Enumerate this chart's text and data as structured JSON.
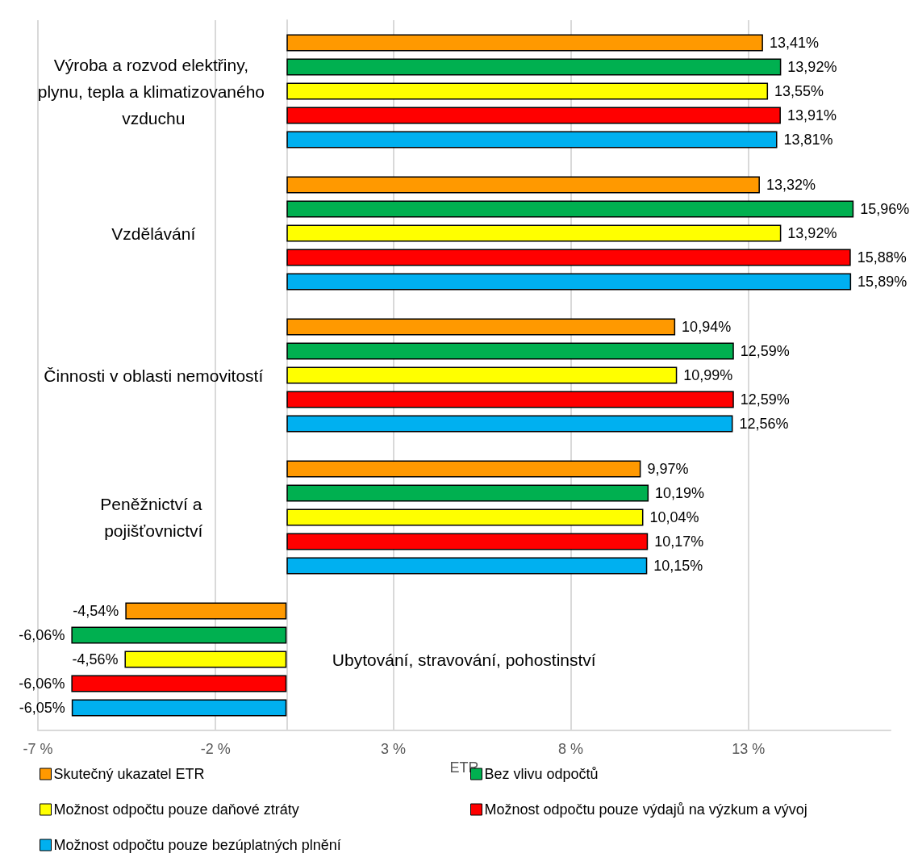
{
  "chart_data": {
    "type": "bar",
    "orientation": "horizontal",
    "xlabel": "ETR",
    "categories": [
      "Výroba a rozvod elektřiny, plynu, tepla a klimatizovaného vzduchu",
      "Vzdělávání",
      "Činnosti v oblasti nemovitostí",
      "Peněžnictví a pojišťovnictví",
      "Ubytování, stravování, pohostinství"
    ],
    "series": [
      {
        "name": "Skutečný ukazatel ETR",
        "color": "#ff9900",
        "values": [
          13.41,
          13.32,
          10.94,
          9.97,
          -4.54
        ],
        "value_labels": [
          "13,41%",
          "13,32%",
          "10,94%",
          "9,97%",
          "-4,54%"
        ]
      },
      {
        "name": "Bez vlivu odpočtů",
        "color": "#00b050",
        "values": [
          13.92,
          15.96,
          12.59,
          10.19,
          -6.06
        ],
        "value_labels": [
          "13,92%",
          "15,96%",
          "12,59%",
          "10,19%",
          "-6,06%"
        ]
      },
      {
        "name": "Možnost odpočtu pouze daňové ztráty",
        "color": "#ffff00",
        "values": [
          13.55,
          13.92,
          10.99,
          10.04,
          -4.56
        ],
        "value_labels": [
          "13,55%",
          "13,92%",
          "10,99%",
          "10,04%",
          "-4,56%"
        ]
      },
      {
        "name": "Možnost odpočtu pouze výdajů na výzkum a vývoj",
        "color": "#ff0000",
        "values": [
          13.91,
          15.88,
          12.59,
          10.17,
          -6.06
        ],
        "value_labels": [
          "13,91%",
          "15,88%",
          "12,59%",
          "10,17%",
          "-6,06%"
        ]
      },
      {
        "name": "Možnost odpočtu pouze bezúplatných plnění",
        "color": "#00b0f0",
        "values": [
          13.81,
          15.89,
          12.56,
          10.15,
          -6.05
        ],
        "value_labels": [
          "13,81%",
          "15,89%",
          "12,56%",
          "10,15%",
          "-6,05%"
        ]
      }
    ],
    "xlim": [
      -7,
      17
    ],
    "xticks": [
      {
        "value": -7,
        "label": "-7 %"
      },
      {
        "value": -2,
        "label": "-2 %"
      },
      {
        "value": 3,
        "label": "3 %"
      },
      {
        "value": 8,
        "label": "8 %"
      },
      {
        "value": 13,
        "label": "13 %"
      }
    ],
    "grid": "x",
    "legend": "bottom"
  }
}
